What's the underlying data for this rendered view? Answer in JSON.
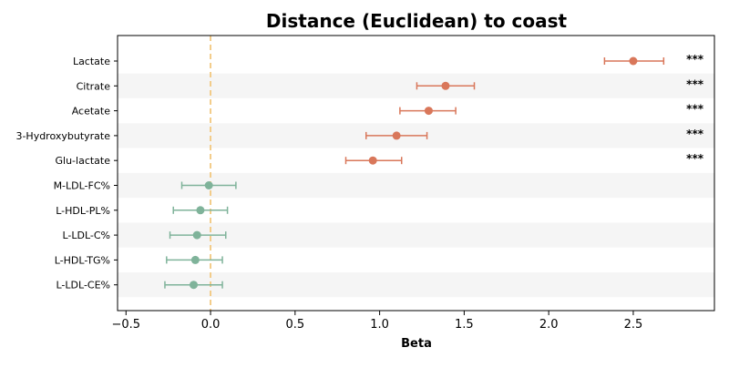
{
  "chart_data": {
    "type": "forest",
    "title": "Distance (Euclidean) to coast",
    "xlabel": "Beta",
    "xlim": [
      -0.55,
      2.98
    ],
    "xticks": [
      -0.5,
      0.0,
      0.5,
      1.0,
      1.5,
      2.0,
      2.5
    ],
    "xtick_labels": [
      "−0.5",
      "0.0",
      "0.5",
      "1.0",
      "1.5",
      "2.0",
      "2.5"
    ],
    "reference_line": 0.0,
    "reference_color": "#f2c87f",
    "colors": {
      "significant": "#d9775a",
      "nonsignificant": "#7fb39a",
      "band": "#f5f5f5"
    },
    "rows": [
      {
        "label": "Lactate",
        "beta": 2.5,
        "ci": [
          2.33,
          2.68
        ],
        "sig": "***",
        "significant": true
      },
      {
        "label": "Citrate",
        "beta": 1.39,
        "ci": [
          1.22,
          1.56
        ],
        "sig": "***",
        "significant": true
      },
      {
        "label": "Acetate",
        "beta": 1.29,
        "ci": [
          1.12,
          1.45
        ],
        "sig": "***",
        "significant": true
      },
      {
        "label": "3-Hydroxybutyrate",
        "beta": 1.1,
        "ci": [
          0.92,
          1.28
        ],
        "sig": "***",
        "significant": true
      },
      {
        "label": "Glu-lactate",
        "beta": 0.96,
        "ci": [
          0.8,
          1.13
        ],
        "sig": "***",
        "significant": true
      },
      {
        "label": "M-LDL-FC%",
        "beta": -0.01,
        "ci": [
          -0.17,
          0.15
        ],
        "sig": "",
        "significant": false
      },
      {
        "label": "L-HDL-PL%",
        "beta": -0.06,
        "ci": [
          -0.22,
          0.1
        ],
        "sig": "",
        "significant": false
      },
      {
        "label": "L-LDL-C%",
        "beta": -0.08,
        "ci": [
          -0.24,
          0.09
        ],
        "sig": "",
        "significant": false
      },
      {
        "label": "L-HDL-TG%",
        "beta": -0.09,
        "ci": [
          -0.26,
          0.07
        ],
        "sig": "",
        "significant": false
      },
      {
        "label": "L-LDL-CE%",
        "beta": -0.1,
        "ci": [
          -0.27,
          0.07
        ],
        "sig": "",
        "significant": false
      }
    ]
  }
}
